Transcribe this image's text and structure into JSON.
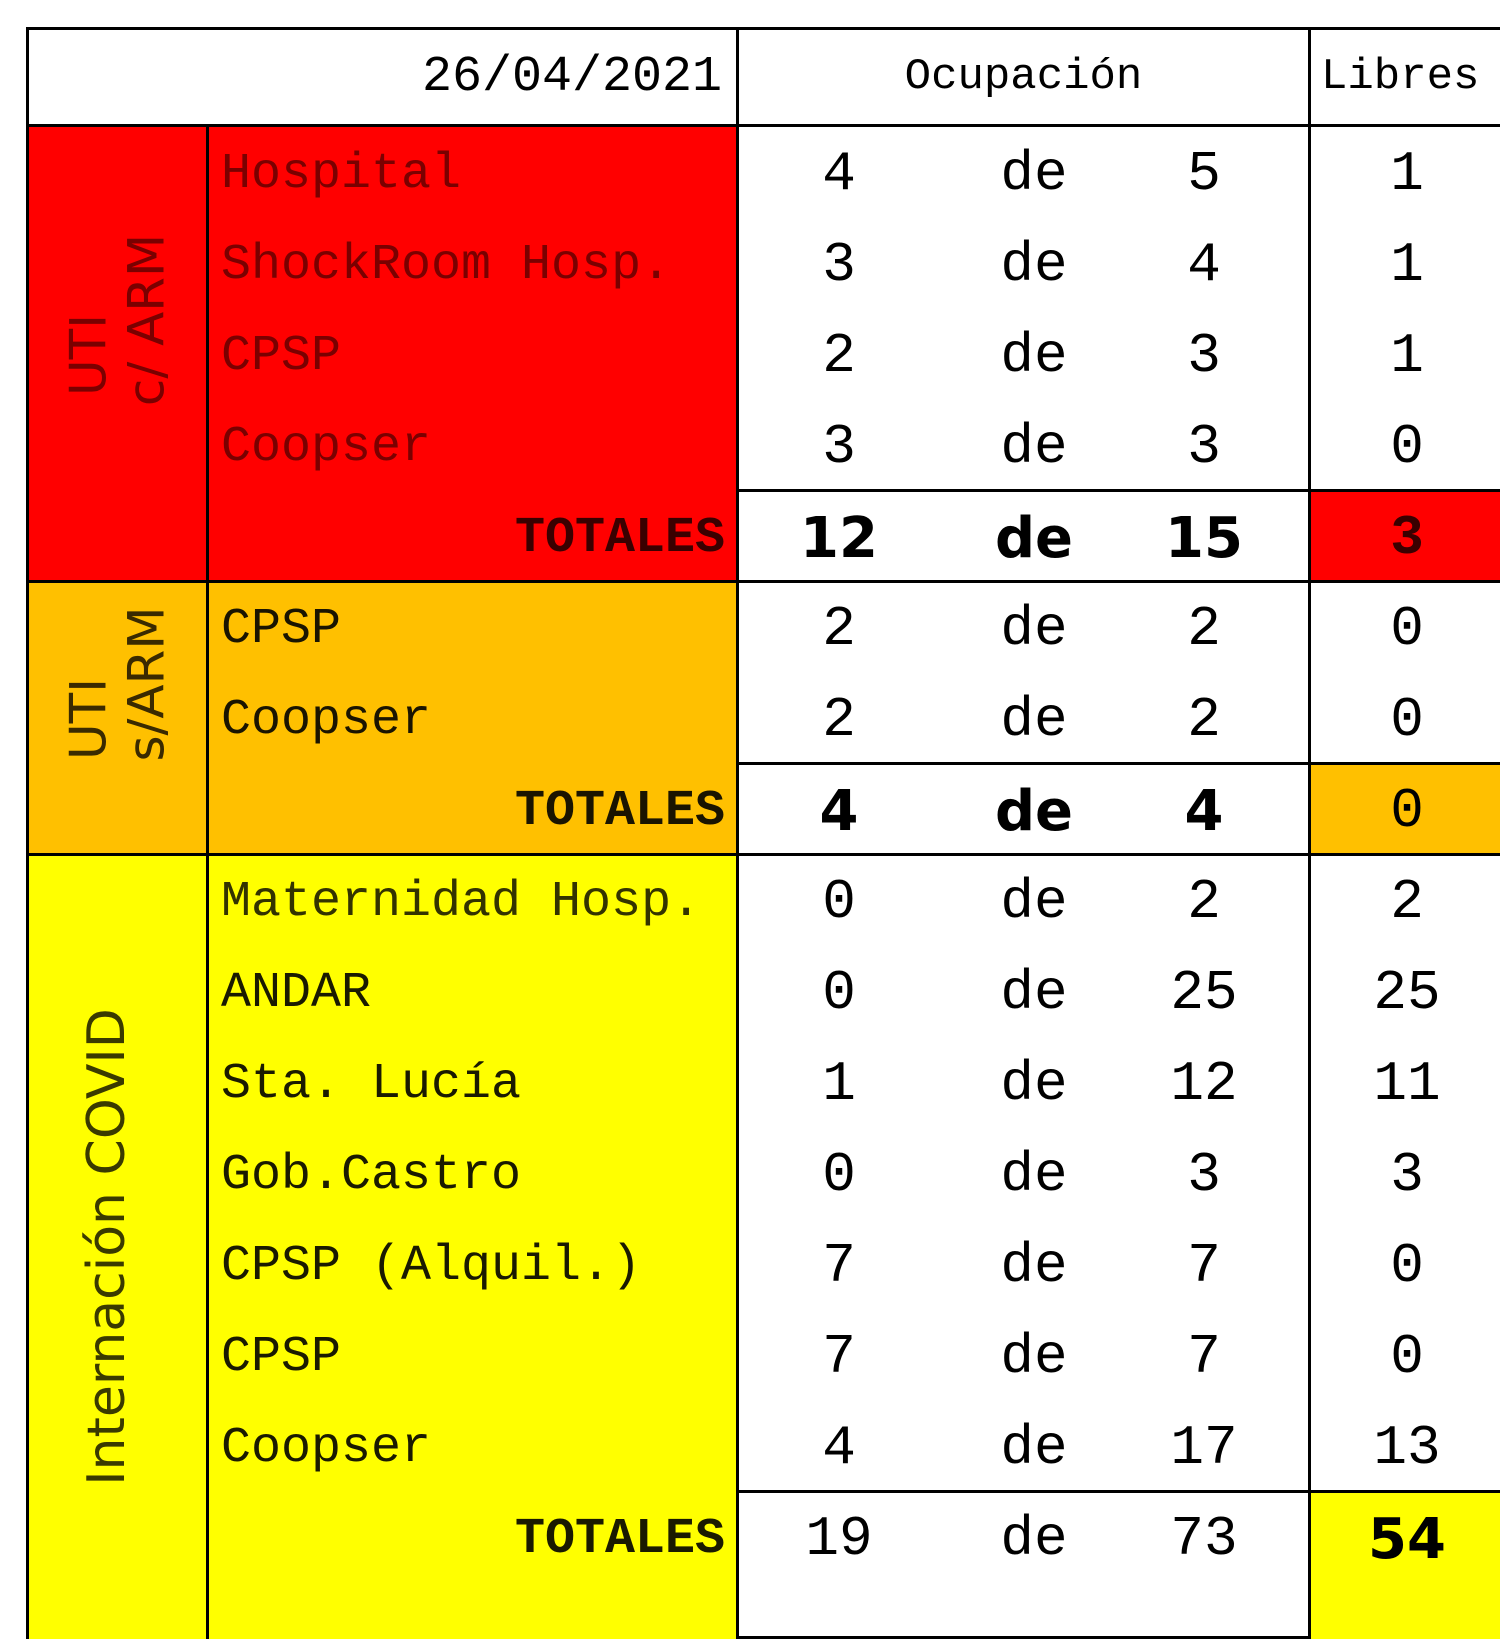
{
  "header": {
    "date": "26/04/2021",
    "ocupacion": "Ocupación",
    "libres": "Libres"
  },
  "colors": {
    "uti_c_arm": "#ff0000",
    "uti_s_arm": "#ffc000",
    "internacion": "#ffff00"
  },
  "groups": [
    {
      "label_line1": "UTI",
      "label_line2": "c/ ARM",
      "rows": [
        {
          "name": "Hospital",
          "occupied": "4",
          "de": "de",
          "total": "5",
          "free": "1"
        },
        {
          "name": "ShockRoom Hosp.",
          "occupied": "3",
          "de": "de",
          "total": "4",
          "free": "1"
        },
        {
          "name": "CPSP",
          "occupied": "2",
          "de": "de",
          "total": "3",
          "free": "1"
        },
        {
          "name": "Coopser",
          "occupied": "3",
          "de": "de",
          "total": "3",
          "free": "0"
        }
      ],
      "totals": {
        "label": "TOTALES",
        "occupied": "12",
        "de": "de",
        "total": "15",
        "free": "3"
      }
    },
    {
      "label_line1": "UTI",
      "label_line2": "s/ARM",
      "rows": [
        {
          "name": "CPSP",
          "occupied": "2",
          "de": "de",
          "total": "2",
          "free": "0"
        },
        {
          "name": "Coopser",
          "occupied": "2",
          "de": "de",
          "total": "2",
          "free": "0"
        }
      ],
      "totals": {
        "label": "TOTALES",
        "occupied": "4",
        "de": "de",
        "total": "4",
        "free": "0"
      }
    },
    {
      "label_line1": "Internación COVID",
      "rows": [
        {
          "name": "Maternidad Hosp.",
          "occupied": "0",
          "de": "de",
          "total": "2",
          "free": "2"
        },
        {
          "name": "ANDAR",
          "occupied": "0",
          "de": "de",
          "total": "25",
          "free": "25"
        },
        {
          "name": "Sta. Lucía",
          "occupied": "1",
          "de": "de",
          "total": "12",
          "free": "11"
        },
        {
          "name": "Gob.Castro",
          "occupied": "0",
          "de": "de",
          "total": "3",
          "free": "3"
        },
        {
          "name": "CPSP (Alquil.)",
          "occupied": "7",
          "de": "de",
          "total": "7",
          "free": "0"
        },
        {
          "name": "CPSP",
          "occupied": "7",
          "de": "de",
          "total": "7",
          "free": "0"
        },
        {
          "name": "Coopser",
          "occupied": "4",
          "de": "de",
          "total": "17",
          "free": "13"
        }
      ],
      "totals": {
        "label": "TOTALES",
        "occupied": "19",
        "de": "de",
        "total": "73",
        "free": "54"
      }
    }
  ]
}
